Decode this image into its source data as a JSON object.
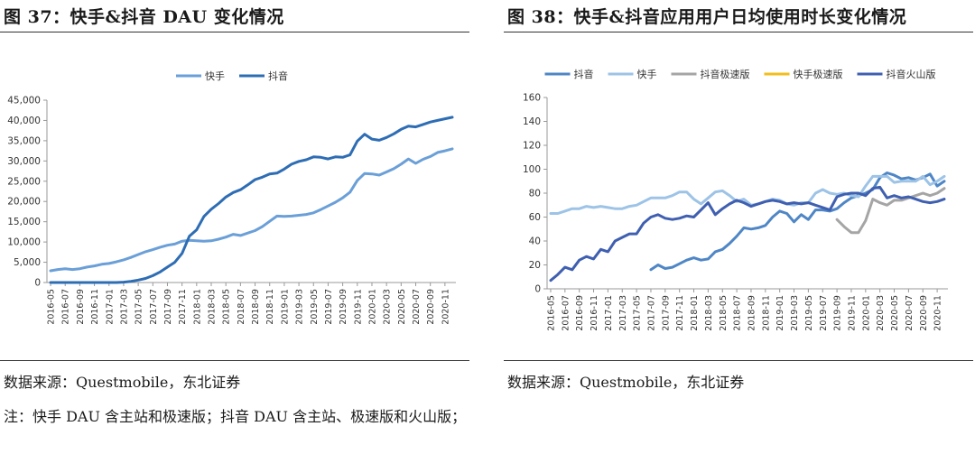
{
  "left": {
    "title": "图 37：快手&抖音 DAU 变化情况",
    "source": "数据来源：Questmobile，东北证券",
    "note": "注：快手 DAU 含主站和极速版；抖音 DAU 含主站、极速版和火山版；",
    "chart_data": {
      "type": "line",
      "title": "",
      "xlabel": "",
      "ylabel": "",
      "ylim": [
        0,
        45000
      ],
      "yticks": [
        "0",
        "5,000",
        "10,000",
        "15,000",
        "20,000",
        "25,000",
        "30,000",
        "35,000",
        "40,000",
        "45,000"
      ],
      "x": [
        "2016-05",
        "2016-06",
        "2016-07",
        "2016-08",
        "2016-09",
        "2016-10",
        "2016-11",
        "2016-12",
        "2017-01",
        "2017-02",
        "2017-03",
        "2017-04",
        "2017-05",
        "2017-06",
        "2017-07",
        "2017-08",
        "2017-09",
        "2017-10",
        "2017-11",
        "2017-12",
        "2018-01",
        "2018-02",
        "2018-03",
        "2018-04",
        "2018-05",
        "2018-06",
        "2018-07",
        "2018-08",
        "2018-09",
        "2018-10",
        "2018-11",
        "2018-12",
        "2019-01",
        "2019-02",
        "2019-03",
        "2019-04",
        "2019-05",
        "2019-06",
        "2019-07",
        "2019-08",
        "2019-09",
        "2019-10",
        "2019-11",
        "2019-12",
        "2020-01",
        "2020-02",
        "2020-03",
        "2020-04",
        "2020-05",
        "2020-06",
        "2020-07",
        "2020-08",
        "2020-09",
        "2020-10",
        "2020-11",
        "2020-12"
      ],
      "xtick_labels": [
        "2016-05",
        "2016-07",
        "2016-09",
        "2016-11",
        "2017-01",
        "2017-03",
        "2017-05",
        "2017-07",
        "2017-09",
        "2017-11",
        "2018-01",
        "2018-03",
        "2018-05",
        "2018-07",
        "2018-09",
        "2018-11",
        "2019-01",
        "2019-03",
        "2019-05",
        "2019-07",
        "2019-09",
        "2019-11",
        "2020-01",
        "2020-03",
        "2020-05",
        "2020-07",
        "2020-09",
        "2020-11"
      ],
      "legend_position": "top-center",
      "grid": false,
      "series": [
        {
          "name": "快手",
          "color": "#6A9FD8",
          "values": [
            2900,
            3200,
            3400,
            3200,
            3400,
            3800,
            4100,
            4500,
            4700,
            5100,
            5600,
            6200,
            6900,
            7600,
            8100,
            8700,
            9200,
            9500,
            10200,
            10400,
            10300,
            10200,
            10300,
            10700,
            11200,
            11900,
            11600,
            12200,
            12800,
            13800,
            15100,
            16400,
            16300,
            16400,
            16600,
            16800,
            17200,
            18000,
            18900,
            19800,
            20900,
            22300,
            25200,
            26900,
            26800,
            26500,
            27300,
            28100,
            29200,
            30500,
            29400,
            30400,
            31100,
            32100,
            32500,
            33000
          ]
        },
        {
          "name": "抖音",
          "color": "#2E6DB4",
          "values": [
            0,
            0,
            0,
            0,
            0,
            0,
            0,
            0,
            0,
            0,
            100,
            300,
            600,
            1000,
            1700,
            2600,
            3800,
            5000,
            7200,
            11400,
            13000,
            16300,
            18100,
            19500,
            21100,
            22200,
            22900,
            24100,
            25400,
            26000,
            26800,
            27000,
            28000,
            29200,
            29900,
            30300,
            31000,
            30900,
            30500,
            31000,
            30900,
            31500,
            34900,
            36600,
            35400,
            35100,
            35800,
            36700,
            37800,
            38600,
            38400,
            39000,
            39600,
            40000,
            40400,
            40800
          ]
        }
      ]
    }
  },
  "right": {
    "title": "图 38：快手&抖音应用用户日均使用时长变化情况",
    "source": "数据来源：Questmobile，东北证券",
    "chart_data": {
      "type": "line",
      "title": "",
      "xlabel": "",
      "ylabel": "",
      "ylim": [
        0,
        160
      ],
      "yticks": [
        "0",
        "20",
        "40",
        "60",
        "80",
        "100",
        "120",
        "140",
        "160"
      ],
      "x": [
        "2016-05",
        "2016-06",
        "2016-07",
        "2016-08",
        "2016-09",
        "2016-10",
        "2016-11",
        "2016-12",
        "2017-01",
        "2017-02",
        "2017-03",
        "2017-04",
        "2017-05",
        "2017-06",
        "2017-07",
        "2017-08",
        "2017-09",
        "2017-10",
        "2017-11",
        "2017-12",
        "2018-01",
        "2018-02",
        "2018-03",
        "2018-04",
        "2018-05",
        "2018-06",
        "2018-07",
        "2018-08",
        "2018-09",
        "2018-10",
        "2018-11",
        "2018-12",
        "2019-01",
        "2019-02",
        "2019-03",
        "2019-04",
        "2019-05",
        "2019-06",
        "2019-07",
        "2019-08",
        "2019-09",
        "2019-10",
        "2019-11",
        "2019-12",
        "2020-01",
        "2020-02",
        "2020-03",
        "2020-04",
        "2020-05",
        "2020-06",
        "2020-07",
        "2020-08",
        "2020-09",
        "2020-10",
        "2020-11",
        "2020-12"
      ],
      "xtick_labels": [
        "2016-05",
        "2016-07",
        "2016-09",
        "2016-11",
        "2017-01",
        "2017-03",
        "2017-05",
        "2017-07",
        "2017-09",
        "2017-11",
        "2018-01",
        "2018-03",
        "2018-05",
        "2018-07",
        "2018-09",
        "2018-11",
        "2019-01",
        "2019-03",
        "2019-05",
        "2019-07",
        "2019-09",
        "2019-11",
        "2020-01",
        "2020-03",
        "2020-05",
        "2020-07",
        "2020-09",
        "2020-11"
      ],
      "legend_position": "top",
      "grid": false,
      "series": [
        {
          "name": "抖音",
          "color": "#4F86C6",
          "values": [
            null,
            null,
            null,
            null,
            null,
            null,
            null,
            null,
            null,
            null,
            null,
            null,
            null,
            null,
            16,
            20,
            17,
            18,
            21,
            24,
            26,
            24,
            25,
            31,
            33,
            38,
            44,
            51,
            50,
            51,
            53,
            60,
            65,
            63,
            56,
            62,
            58,
            66,
            66,
            65,
            67,
            72,
            76,
            78,
            80,
            83,
            93,
            97,
            95,
            92,
            93,
            91,
            93,
            96,
            86,
            90
          ]
        },
        {
          "name": "快手",
          "color": "#9DC3E6",
          "values": [
            63,
            63,
            65,
            67,
            67,
            69,
            68,
            69,
            68,
            67,
            67,
            69,
            70,
            73,
            76,
            76,
            76,
            78,
            81,
            81,
            75,
            71,
            76,
            81,
            82,
            78,
            73,
            75,
            70,
            71,
            73,
            75,
            74,
            71,
            70,
            72,
            72,
            80,
            83,
            80,
            79,
            80,
            78,
            77,
            86,
            94,
            94,
            94,
            89,
            90,
            90,
            90,
            94,
            87,
            90,
            94
          ]
        },
        {
          "name": "抖音极速版",
          "color": "#A5A5A5",
          "values": [
            null,
            null,
            null,
            null,
            null,
            null,
            null,
            null,
            null,
            null,
            null,
            null,
            null,
            null,
            null,
            null,
            null,
            null,
            null,
            null,
            null,
            null,
            null,
            null,
            null,
            null,
            null,
            null,
            null,
            null,
            null,
            null,
            null,
            null,
            null,
            null,
            null,
            null,
            null,
            null,
            58,
            52,
            47,
            47,
            57,
            75,
            72,
            70,
            74,
            74,
            76,
            78,
            80,
            78,
            80,
            84
          ]
        },
        {
          "name": "快手极速版",
          "color": "#F2BE1B",
          "values": [
            null,
            null,
            null,
            null,
            null,
            null,
            null,
            null,
            null,
            null,
            null,
            null,
            null,
            null,
            null,
            null,
            null,
            null,
            null,
            null,
            null,
            null,
            null,
            null,
            null,
            null,
            null,
            null,
            null,
            null,
            null,
            null,
            null,
            null,
            null,
            null,
            null,
            null,
            null,
            null,
            null,
            null,
            null,
            null,
            null,
            null,
            null,
            null,
            null,
            null,
            null,
            null,
            null,
            null,
            null,
            null
          ]
        },
        {
          "name": "抖音火山版",
          "color": "#3F5FB0",
          "values": [
            7,
            12,
            18,
            16,
            24,
            27,
            25,
            33,
            31,
            40,
            43,
            46,
            46,
            55,
            60,
            62,
            59,
            58,
            59,
            61,
            60,
            66,
            72,
            62,
            67,
            71,
            74,
            72,
            69,
            71,
            73,
            74,
            73,
            71,
            72,
            71,
            72,
            70,
            68,
            66,
            77,
            79,
            80,
            80,
            78,
            84,
            85,
            76,
            78,
            76,
            77,
            75,
            73,
            72,
            73,
            75
          ]
        }
      ]
    }
  }
}
